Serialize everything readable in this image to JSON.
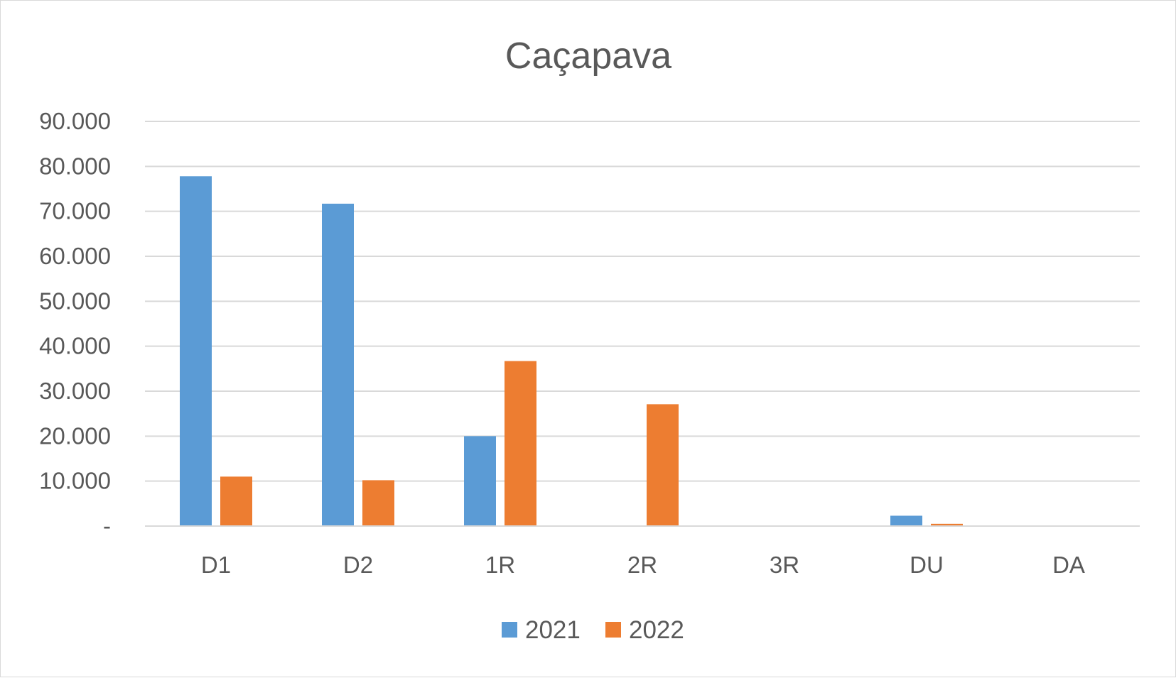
{
  "chart_data": {
    "type": "bar",
    "title": "Caçapava",
    "xlabel": "",
    "ylabel": "",
    "categories": [
      "D1",
      "D2",
      "1R",
      "2R",
      "3R",
      "DU",
      "DA"
    ],
    "series": [
      {
        "name": "2021",
        "color": "#5b9bd5",
        "values": [
          77800,
          71700,
          20000,
          0,
          0,
          2300,
          0
        ]
      },
      {
        "name": "2022",
        "color": "#ed7d31",
        "values": [
          11000,
          10200,
          36700,
          27100,
          0,
          500,
          0
        ]
      }
    ],
    "ylim": [
      0,
      90000
    ],
    "yticks": [
      0,
      10000,
      20000,
      30000,
      40000,
      50000,
      60000,
      70000,
      80000,
      90000
    ],
    "ytick_labels": [
      "-",
      "10.000",
      "20.000",
      "30.000",
      "40.000",
      "50.000",
      "60.000",
      "70.000",
      "80.000",
      "90.000"
    ],
    "grid": true,
    "legend_position": "bottom"
  }
}
